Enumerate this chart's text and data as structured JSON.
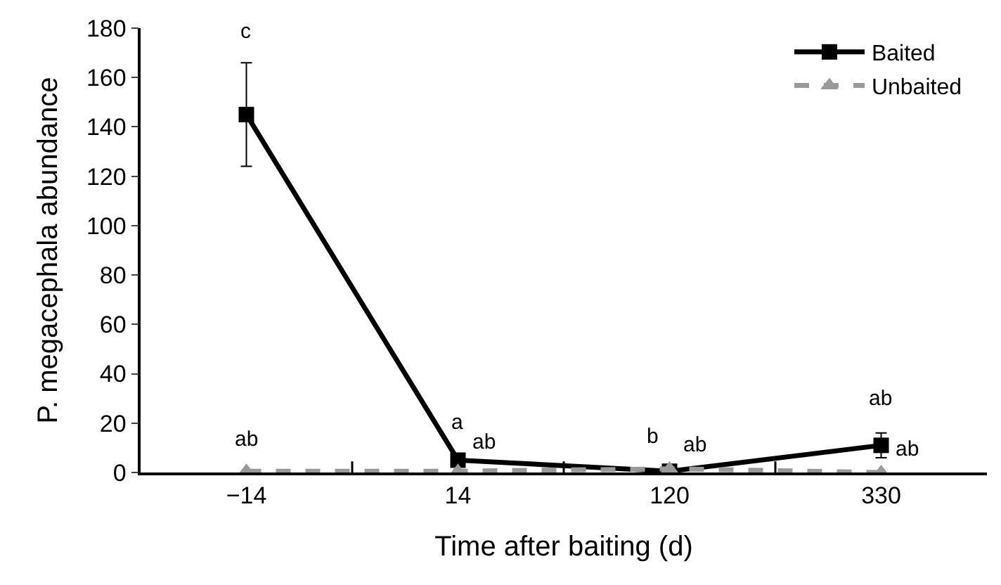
{
  "chart_data": {
    "type": "line",
    "xlabel": "Time after baiting (d)",
    "ylabel": "P. megacephala abundance",
    "categories": [
      "−14",
      "14",
      "120",
      "330"
    ],
    "series": [
      {
        "name": "Baited",
        "color": "#000000",
        "marker": "square",
        "line_style": "solid",
        "values": [
          145,
          5,
          0.5,
          11
        ],
        "errors": [
          21,
          null,
          null,
          5
        ]
      },
      {
        "name": "Unbaited",
        "color": "#999999",
        "marker": "triangle",
        "line_style": "dashed",
        "values": [
          0.5,
          0.5,
          1.5,
          0
        ]
      }
    ],
    "ylim": [
      0,
      180
    ],
    "yticks": [
      0,
      20,
      40,
      60,
      80,
      100,
      120,
      140,
      160,
      180
    ],
    "legend": "top right",
    "annotations": [
      {
        "text": "c",
        "x": "−14",
        "y": 166
      },
      {
        "text": "ab",
        "x": "−14",
        "y": 0.5
      },
      {
        "text": "a",
        "x": "14",
        "y": 5
      },
      {
        "text": "ab",
        "x": "14",
        "y": 0.5
      },
      {
        "text": "b",
        "x": "120",
        "y": 1.5
      },
      {
        "text": "ab",
        "x": "120",
        "y": 0.5
      },
      {
        "text": "ab",
        "x": "330",
        "y": 16
      },
      {
        "text": "ab",
        "x": "330",
        "y": 0
      }
    ]
  }
}
